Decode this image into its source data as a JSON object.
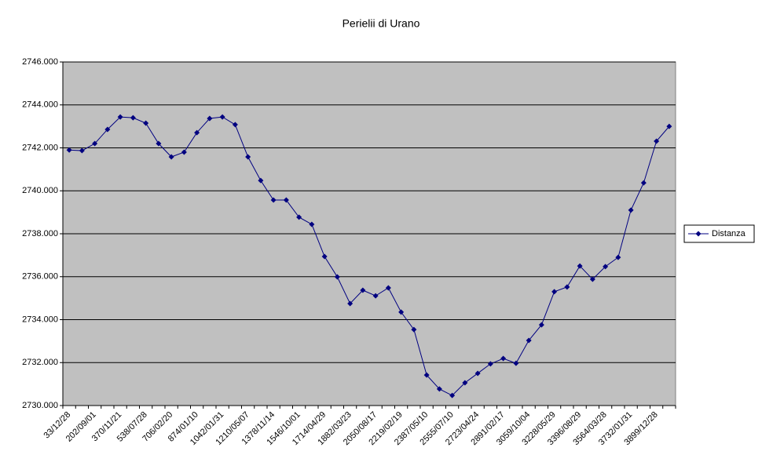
{
  "chart_data": {
    "type": "line",
    "title": "Perielii di Urano",
    "categories": [
      "33/12/28",
      null,
      "202/09/01",
      null,
      "370/11/21",
      null,
      "538/07/28",
      null,
      "706/02/20",
      null,
      "874/01/10",
      null,
      "1042/01/31",
      null,
      "1210/05/07",
      null,
      "1378/11/14",
      null,
      "1546/10/01",
      null,
      "1714/04/29",
      null,
      "1882/03/23",
      null,
      "2050/08/17",
      null,
      "2219/02/19",
      null,
      "2387/05/10",
      null,
      "2555/07/10",
      null,
      "2723/04/24",
      null,
      "2891/02/17",
      null,
      "3059/10/04",
      null,
      "3228/05/29",
      null,
      "3396/08/29",
      null,
      "3564/03/28",
      null,
      "3732/01/31",
      null,
      "3899/12/28",
      null
    ],
    "series": [
      {
        "name": "Distanza",
        "color": "#000080",
        "values": [
          2741.9,
          2741.87,
          2742.2,
          2742.86,
          2743.44,
          2743.4,
          2743.15,
          2742.2,
          2741.58,
          2741.8,
          2742.71,
          2743.37,
          2743.44,
          2743.08,
          2741.58,
          2740.48,
          2739.57,
          2739.57,
          2738.77,
          2738.44,
          2736.94,
          2735.99,
          2734.75,
          2735.37,
          2735.11,
          2735.48,
          2734.35,
          2733.54,
          2731.42,
          2730.77,
          2730.47,
          2731.06,
          2731.5,
          2731.94,
          2732.19,
          2731.97,
          2733.03,
          2733.76,
          2735.3,
          2735.52,
          2736.5,
          2735.88,
          2736.47,
          2736.9,
          2739.1,
          2740.37,
          2742.31,
          2743.0
        ]
      }
    ],
    "ylim": [
      2730,
      2746
    ],
    "yticks": [
      {
        "value": 2730,
        "label": "2730.000"
      },
      {
        "value": 2732,
        "label": "2732.000"
      },
      {
        "value": 2734,
        "label": "2734.000"
      },
      {
        "value": 2736,
        "label": "2736.000"
      },
      {
        "value": 2738,
        "label": "2738.000"
      },
      {
        "value": 2740,
        "label": "2740.000"
      },
      {
        "value": 2742,
        "label": "2742.000"
      },
      {
        "value": 2744,
        "label": "2744.000"
      },
      {
        "value": 2746,
        "label": "2746.000"
      }
    ],
    "grid": true,
    "legend": "right",
    "plot_background": "#c0c0c0"
  }
}
